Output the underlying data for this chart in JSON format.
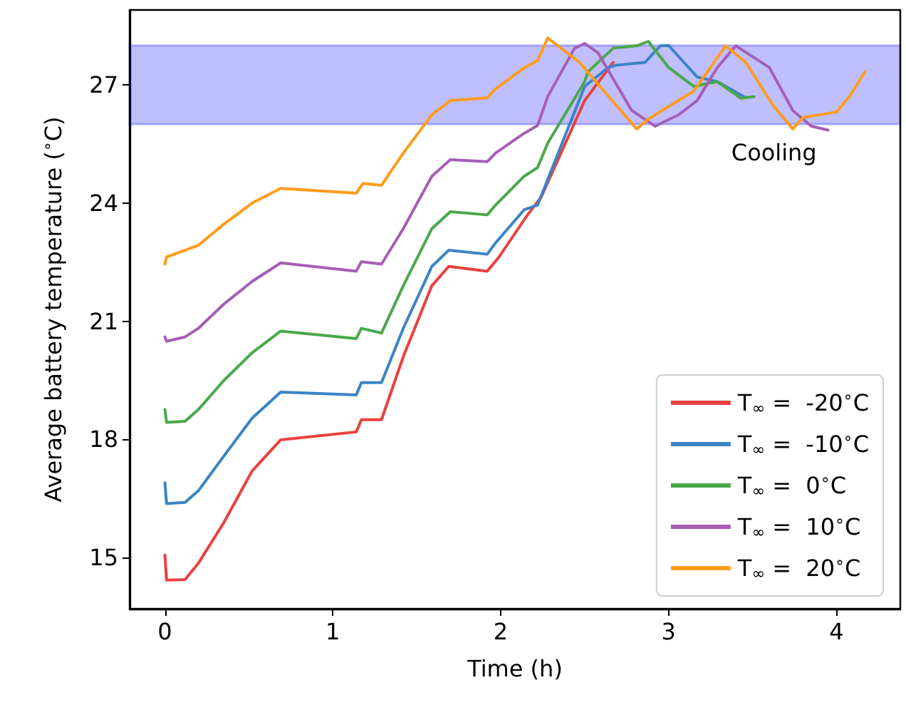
{
  "chart_data": {
    "type": "line",
    "xlabel": "Time (h)",
    "ylabel": "Average battery temperature ($^{∘}$C)",
    "xlim": [
      -0.21,
      4.38
    ],
    "xticks": [
      0,
      1,
      2,
      3,
      4
    ],
    "ylim": [
      13.7,
      28.9
    ],
    "yticks": [
      15,
      18,
      21,
      24,
      27
    ],
    "grid": false,
    "legend": "bottom right",
    "marker": "none",
    "line_style": "solid",
    "bands": [
      {
        "axis": "y",
        "from": 26,
        "to": 28,
        "label": "Cooling",
        "color": "#0000ff"
      }
    ],
    "series": [
      {
        "name": "T$_{∞}$ =  -20$^{∘}$C",
        "color": "#e8413f",
        "x": [
          0,
          0.01,
          0.12,
          0.2,
          0.35,
          0.52,
          0.69,
          1.14,
          1.17,
          1.29,
          1.42,
          1.59,
          1.69,
          1.92,
          1.99,
          2.16,
          2.24,
          2.5,
          2.67
        ],
        "values": [
          15.06,
          14.43,
          14.44,
          14.86,
          15.88,
          17.2,
          17.99,
          18.19,
          18.5,
          18.5,
          20.1,
          21.9,
          22.39,
          22.27,
          22.63,
          23.7,
          24.14,
          26.6,
          27.57
        ]
      },
      {
        "name": "T$_{∞}$ =  -10$^{∘}$C",
        "color": "#3a84c4",
        "x": [
          0,
          0.01,
          0.12,
          0.2,
          0.35,
          0.52,
          0.69,
          1.14,
          1.17,
          1.29,
          1.42,
          1.59,
          1.69,
          1.92,
          1.97,
          2.14,
          2.22,
          2.5,
          2.64,
          2.69,
          2.86,
          2.95,
          3.0,
          3.17,
          3.29,
          3.46
        ],
        "values": [
          16.9,
          16.37,
          16.4,
          16.7,
          17.57,
          18.54,
          19.2,
          19.13,
          19.44,
          19.44,
          20.82,
          22.39,
          22.8,
          22.7,
          22.99,
          23.83,
          23.95,
          26.96,
          27.44,
          27.5,
          27.57,
          27.99,
          28.0,
          27.2,
          27.08,
          26.67
        ]
      },
      {
        "name": "T$_{∞}$ =  0$^{∘}$C",
        "color": "#4aa84a",
        "x": [
          0,
          0.01,
          0.12,
          0.2,
          0.35,
          0.52,
          0.69,
          1.14,
          1.17,
          1.29,
          1.42,
          1.59,
          1.7,
          1.92,
          1.97,
          2.14,
          2.22,
          2.28,
          2.5,
          2.52,
          2.67,
          2.81,
          2.88,
          3.0,
          3.15,
          3.29,
          3.43,
          3.51
        ],
        "values": [
          18.76,
          18.43,
          18.46,
          18.76,
          19.49,
          20.2,
          20.75,
          20.56,
          20.82,
          20.7,
          21.9,
          23.35,
          23.78,
          23.7,
          23.95,
          24.68,
          24.9,
          25.52,
          27.08,
          27.33,
          27.93,
          27.99,
          28.1,
          27.44,
          26.96,
          27.08,
          26.66,
          26.7
        ]
      },
      {
        "name": "T$_{∞}$ =  10$^{∘}$C",
        "color": "#a65fb5",
        "x": [
          0,
          0.01,
          0.12,
          0.2,
          0.35,
          0.52,
          0.69,
          1.14,
          1.17,
          1.29,
          1.42,
          1.59,
          1.7,
          1.92,
          1.97,
          2.14,
          2.22,
          2.28,
          2.44,
          2.5,
          2.58,
          2.78,
          2.92,
          3.06,
          3.17,
          3.29,
          3.4,
          3.6,
          3.74,
          3.85,
          3.95
        ],
        "values": [
          20.6,
          20.49,
          20.6,
          20.82,
          21.43,
          22.01,
          22.48,
          22.27,
          22.51,
          22.45,
          23.35,
          24.68,
          25.1,
          25.05,
          25.27,
          25.77,
          25.97,
          26.7,
          27.93,
          28.05,
          27.81,
          26.35,
          25.95,
          26.24,
          26.6,
          27.44,
          27.99,
          27.44,
          26.35,
          25.95,
          25.85
        ]
      },
      {
        "name": "T$_{∞}$ =  20$^{∘}$C",
        "color": "#ff9c1c",
        "x": [
          0,
          0.01,
          0.12,
          0.2,
          0.35,
          0.52,
          0.69,
          1.14,
          1.18,
          1.29,
          1.42,
          1.59,
          1.7,
          1.92,
          1.97,
          2.14,
          2.22,
          2.28,
          2.47,
          2.64,
          2.81,
          2.88,
          3.03,
          3.15,
          3.34,
          3.46,
          3.62,
          3.74,
          3.8,
          4.0,
          4.08,
          4.17
        ],
        "values": [
          22.45,
          22.63,
          22.8,
          22.93,
          23.46,
          24.0,
          24.37,
          24.25,
          24.5,
          24.45,
          25.27,
          26.24,
          26.6,
          26.67,
          26.9,
          27.43,
          27.62,
          28.19,
          27.57,
          26.72,
          25.88,
          26.13,
          26.53,
          26.84,
          27.99,
          27.57,
          26.49,
          25.88,
          26.17,
          26.31,
          26.72,
          27.33
        ]
      }
    ]
  }
}
